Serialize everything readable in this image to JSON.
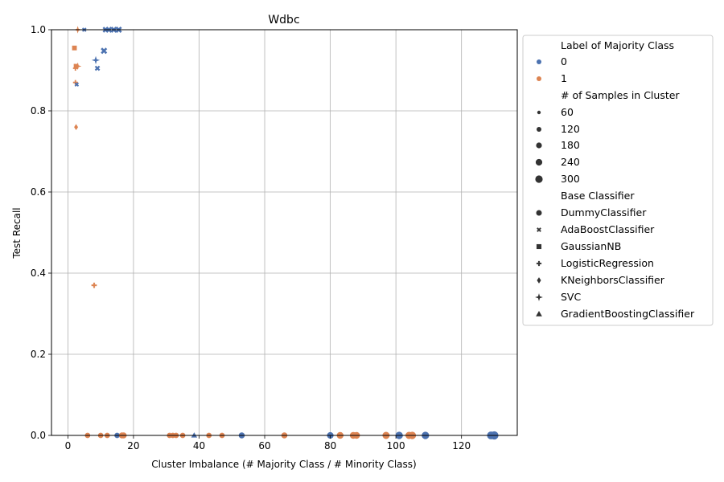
{
  "chart_data": {
    "type": "scatter",
    "title": "Wdbc",
    "xlabel": "Cluster Imbalance (# Majority Class / # Minority Class)",
    "ylabel": "Test Recall",
    "xlim": [
      -5,
      137
    ],
    "ylim": [
      0,
      1.0
    ],
    "xticks": [
      "0",
      "20",
      "40",
      "60",
      "80",
      "100",
      "120"
    ],
    "yticks": [
      "0.0",
      "0.2",
      "0.4",
      "0.6",
      "0.8",
      "1.0"
    ],
    "grid": true,
    "legend_position": "outside-right",
    "colors": {
      "0": "#4c72b0",
      "1": "#dd8452"
    },
    "legend": {
      "hue_title": "Label of Majority Class",
      "hue_items": [
        {
          "label": "0",
          "color": "#4c72b0"
        },
        {
          "label": "1",
          "color": "#dd8452"
        }
      ],
      "size_title": "# of Samples in Cluster",
      "size_items": [
        "60",
        "120",
        "180",
        "240",
        "300"
      ],
      "style_title": "Base Classifier",
      "style_items": [
        "DummyClassifier",
        "AdaBoostClassifier",
        "GaussianNB",
        "LogisticRegression",
        "KNeighborsClassifier",
        "SVC",
        "GradientBoostingClassifier"
      ]
    },
    "points": [
      {
        "x": 2.0,
        "y": 0.955,
        "label": "1",
        "clf": "GaussianNB",
        "n": 60
      },
      {
        "x": 2.5,
        "y": 0.91,
        "label": "1",
        "clf": "GaussianNB",
        "n": 60
      },
      {
        "x": 2.3,
        "y": 0.87,
        "label": "1",
        "clf": "LogisticRegression",
        "n": 60
      },
      {
        "x": 2.3,
        "y": 0.905,
        "label": "1",
        "clf": "LogisticRegression",
        "n": 60
      },
      {
        "x": 2.5,
        "y": 0.76,
        "label": "1",
        "clf": "KNeighborsClassifier",
        "n": 60
      },
      {
        "x": 3.0,
        "y": 0.91,
        "label": "1",
        "clf": "SVC",
        "n": 60
      },
      {
        "x": 3.0,
        "y": 1.0,
        "label": "1",
        "clf": "SVC",
        "n": 60
      },
      {
        "x": 2.7,
        "y": 0.865,
        "label": "0",
        "clf": "AdaBoostClassifier",
        "n": 60
      },
      {
        "x": 5.0,
        "y": 1.0,
        "label": "0",
        "clf": "AdaBoostClassifier",
        "n": 60
      },
      {
        "x": 8.5,
        "y": 0.925,
        "label": "0",
        "clf": "SVC",
        "n": 100
      },
      {
        "x": 9.0,
        "y": 0.905,
        "label": "0",
        "clf": "AdaBoostClassifier",
        "n": 120
      },
      {
        "x": 11.0,
        "y": 0.948,
        "label": "0",
        "clf": "AdaBoostClassifier",
        "n": 220
      },
      {
        "x": 11.5,
        "y": 1.0,
        "label": "0",
        "clf": "AdaBoostClassifier",
        "n": 180
      },
      {
        "x": 12.5,
        "y": 1.0,
        "label": "0",
        "clf": "AdaBoostClassifier",
        "n": 200
      },
      {
        "x": 14.0,
        "y": 1.0,
        "label": "0",
        "clf": "AdaBoostClassifier",
        "n": 200
      },
      {
        "x": 15.5,
        "y": 1.0,
        "label": "0",
        "clf": "AdaBoostClassifier",
        "n": 220
      },
      {
        "x": 8.0,
        "y": 0.37,
        "label": "1",
        "clf": "LogisticRegression",
        "n": 90
      },
      {
        "x": 6.0,
        "y": 0.0,
        "label": "1",
        "clf": "DummyClassifier",
        "n": 60
      },
      {
        "x": 10.0,
        "y": 0.0,
        "label": "1",
        "clf": "DummyClassifier",
        "n": 60
      },
      {
        "x": 12.0,
        "y": 0.0,
        "label": "1",
        "clf": "DummyClassifier",
        "n": 60
      },
      {
        "x": 15.0,
        "y": 0.0,
        "label": "0",
        "clf": "DummyClassifier",
        "n": 60
      },
      {
        "x": 15.5,
        "y": 0.0,
        "label": "0",
        "clf": "AdaBoostClassifier",
        "n": 60
      },
      {
        "x": 16.5,
        "y": 0.0,
        "label": "1",
        "clf": "DummyClassifier",
        "n": 100
      },
      {
        "x": 17.0,
        "y": 0.0,
        "label": "1",
        "clf": "DummyClassifier",
        "n": 100
      },
      {
        "x": 31.0,
        "y": 0.0,
        "label": "1",
        "clf": "DummyClassifier",
        "n": 60
      },
      {
        "x": 32.0,
        "y": 0.0,
        "label": "1",
        "clf": "DummyClassifier",
        "n": 60
      },
      {
        "x": 33.0,
        "y": 0.0,
        "label": "1",
        "clf": "DummyClassifier",
        "n": 60
      },
      {
        "x": 35.0,
        "y": 0.0,
        "label": "1",
        "clf": "DummyClassifier",
        "n": 60
      },
      {
        "x": 38.5,
        "y": 0.0,
        "label": "0",
        "clf": "GradientBoostingClassifier",
        "n": 60
      },
      {
        "x": 43.0,
        "y": 0.0,
        "label": "1",
        "clf": "DummyClassifier",
        "n": 60
      },
      {
        "x": 47.0,
        "y": 0.0,
        "label": "1",
        "clf": "DummyClassifier",
        "n": 60
      },
      {
        "x": 53.0,
        "y": 0.0,
        "label": "0",
        "clf": "DummyClassifier",
        "n": 100
      },
      {
        "x": 66.0,
        "y": 0.0,
        "label": "1",
        "clf": "DummyClassifier",
        "n": 100
      },
      {
        "x": 80.0,
        "y": 0.0,
        "label": "0",
        "clf": "DummyClassifier",
        "n": 130
      },
      {
        "x": 83.0,
        "y": 0.0,
        "label": "1",
        "clf": "DummyClassifier",
        "n": 150
      },
      {
        "x": 87.0,
        "y": 0.0,
        "label": "1",
        "clf": "DummyClassifier",
        "n": 150
      },
      {
        "x": 88.0,
        "y": 0.0,
        "label": "1",
        "clf": "DummyClassifier",
        "n": 150
      },
      {
        "x": 97.0,
        "y": 0.0,
        "label": "1",
        "clf": "DummyClassifier",
        "n": 180
      },
      {
        "x": 101.0,
        "y": 0.0,
        "label": "0",
        "clf": "DummyClassifier",
        "n": 200
      },
      {
        "x": 104.0,
        "y": 0.0,
        "label": "1",
        "clf": "DummyClassifier",
        "n": 180
      },
      {
        "x": 105.0,
        "y": 0.0,
        "label": "1",
        "clf": "DummyClassifier",
        "n": 200
      },
      {
        "x": 109.0,
        "y": 0.0,
        "label": "0",
        "clf": "DummyClassifier",
        "n": 200
      },
      {
        "x": 129.0,
        "y": 0.0,
        "label": "0",
        "clf": "DummyClassifier",
        "n": 240
      },
      {
        "x": 130.0,
        "y": 0.0,
        "label": "0",
        "clf": "DummyClassifier",
        "n": 280
      }
    ]
  }
}
